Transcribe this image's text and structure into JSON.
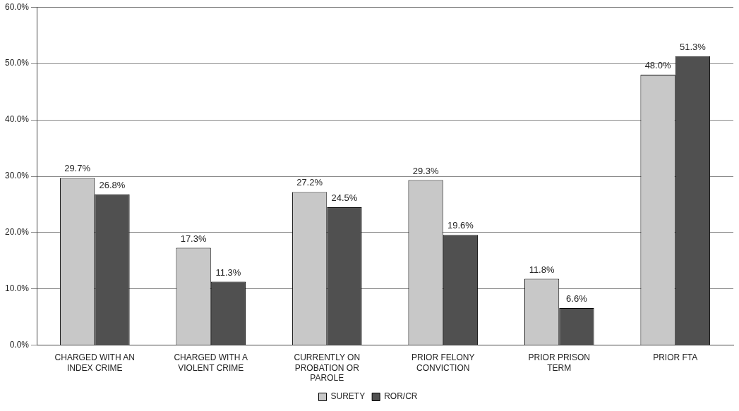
{
  "chart_data": {
    "type": "bar",
    "categories": [
      "CHARGED WITH AN INDEX CRIME",
      "CHARGED WITH A VIOLENT CRIME",
      "CURRENTLY ON PROBATION OR PAROLE",
      "PRIOR FELONY CONVICTION",
      "PRIOR PRISON TERM",
      "PRIOR FTA"
    ],
    "series": [
      {
        "name": "SURETY",
        "color": "#c8c8c8",
        "values": [
          29.7,
          17.3,
          27.2,
          29.3,
          11.8,
          48.0
        ],
        "value_labels": [
          "29.7%",
          "17.3%",
          "27.2%",
          "29.3%",
          "11.8%",
          "48.0%"
        ]
      },
      {
        "name": "ROR/CR",
        "color": "#505050",
        "values": [
          26.8,
          11.3,
          24.5,
          19.6,
          6.6,
          51.3
        ],
        "value_labels": [
          "26.8%",
          "11.3%",
          "24.5%",
          "19.6%",
          "6.6%",
          "51.3%"
        ]
      }
    ],
    "ylim": [
      0,
      60
    ],
    "yticks": [
      {
        "value": 0,
        "label": "0.0%"
      },
      {
        "value": 10,
        "label": "10.0%"
      },
      {
        "value": 20,
        "label": "20.0%"
      },
      {
        "value": 30,
        "label": "30.0%"
      },
      {
        "value": 40,
        "label": "40.0%"
      },
      {
        "value": 50,
        "label": "50.0%"
      },
      {
        "value": 60,
        "label": "60.0%"
      }
    ],
    "grid": "y",
    "legend": "bottom"
  }
}
